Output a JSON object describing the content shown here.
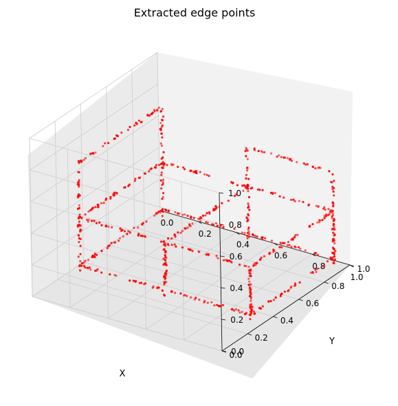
{
  "chart_data": {
    "type": "scatter",
    "projection": "3d",
    "title": "Extracted edge points",
    "xlabel": "X",
    "ylabel": "Y",
    "zlabel": "",
    "xlim": [
      0,
      1
    ],
    "ylim": [
      0,
      1
    ],
    "zlim": [
      0,
      1
    ],
    "xticks": [
      "0.0",
      "0.2",
      "0.4",
      "0.6",
      "0.8",
      "1.0"
    ],
    "yticks": [
      "0.0",
      "0.2",
      "0.4",
      "0.6",
      "0.8",
      "1.0"
    ],
    "zticks": [
      "0.0",
      "0.2",
      "0.4",
      "0.6",
      "0.8",
      "1.0"
    ],
    "grid": true,
    "marker_color": "#ff0000",
    "pane_color": "#f2f2f2",
    "grid_color": "#cccccc",
    "shape": "chair wireframe",
    "series": [
      {
        "edges": [
          [
            [
              0.05,
              0.3,
              0.0
            ],
            [
              0.05,
              0.3,
              0.7
            ]
          ],
          [
            [
              0.05,
              0.95,
              0.0
            ],
            [
              0.05,
              0.95,
              0.7
            ]
          ],
          [
            [
              0.05,
              0.3,
              0.7
            ],
            [
              0.05,
              0.95,
              0.7
            ]
          ],
          [
            [
              0.05,
              0.3,
              0.35
            ],
            [
              0.05,
              0.95,
              0.35
            ]
          ],
          [
            [
              0.05,
              0.3,
              0.05
            ],
            [
              0.05,
              0.95,
              0.05
            ]
          ],
          [
            [
              0.05,
              0.3,
              0.05
            ],
            [
              0.95,
              0.3,
              0.05
            ]
          ],
          [
            [
              0.05,
              0.95,
              0.05
            ],
            [
              0.95,
              0.95,
              0.05
            ]
          ],
          [
            [
              0.95,
              0.3,
              0.05
            ],
            [
              0.95,
              0.95,
              0.05
            ]
          ],
          [
            [
              0.05,
              0.3,
              0.35
            ],
            [
              0.95,
              0.3,
              0.35
            ]
          ],
          [
            [
              0.05,
              0.95,
              0.35
            ],
            [
              0.95,
              0.95,
              0.35
            ]
          ],
          [
            [
              0.95,
              0.3,
              0.35
            ],
            [
              0.95,
              0.95,
              0.35
            ]
          ],
          [
            [
              0.5,
              0.3,
              0.35
            ],
            [
              0.5,
              0.95,
              0.35
            ]
          ],
          [
            [
              0.95,
              0.3,
              0.05
            ],
            [
              0.95,
              0.3,
              0.35
            ]
          ],
          [
            [
              0.95,
              0.95,
              0.05
            ],
            [
              0.95,
              0.95,
              0.35
            ]
          ],
          [
            [
              0.5,
              0.3,
              0.05
            ],
            [
              0.5,
              0.3,
              0.35
            ]
          ],
          [
            [
              0.5,
              0.95,
              0.35
            ],
            [
              0.5,
              0.95,
              0.6
            ]
          ],
          [
            [
              0.95,
              0.95,
              0.35
            ],
            [
              0.95,
              0.95,
              0.6
            ]
          ],
          [
            [
              0.5,
              0.95,
              0.6
            ],
            [
              0.95,
              0.95,
              0.6
            ]
          ],
          [
            [
              0.5,
              0.95,
              0.35
            ],
            [
              0.5,
              0.95,
              0.0
            ]
          ],
          [
            [
              0.95,
              0.95,
              0.35
            ],
            [
              0.95,
              0.95,
              0.0
            ]
          ],
          [
            [
              0.95,
              0.3,
              0.35
            ],
            [
              0.95,
              0.3,
              0.0
            ]
          ],
          [
            [
              0.5,
              0.3,
              0.35
            ],
            [
              0.5,
              0.3,
              0.0
            ]
          ]
        ]
      }
    ]
  }
}
